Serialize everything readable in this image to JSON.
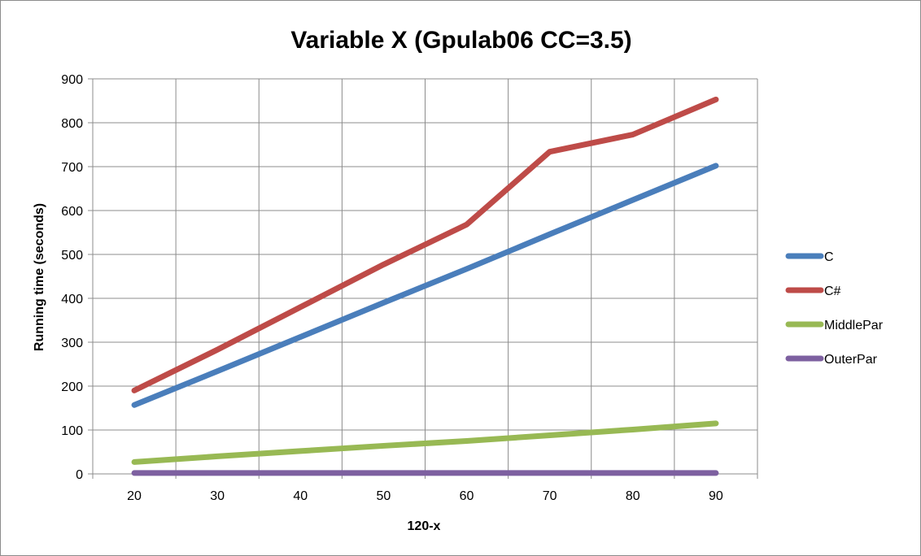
{
  "chart_data": {
    "type": "line",
    "title": "Variable X (Gpulab06 CC=3.5)",
    "xlabel": "120-x",
    "ylabel": "Running time (seconds)",
    "x": [
      20,
      30,
      40,
      50,
      60,
      70,
      80,
      90
    ],
    "ylim": [
      0,
      900
    ],
    "yticks": [
      0,
      100,
      200,
      300,
      400,
      500,
      600,
      700,
      800,
      900
    ],
    "grid": true,
    "legend_position": "right",
    "series": [
      {
        "name": "C",
        "color": "#4a7ebb",
        "values": [
          157,
          234,
          312,
          390,
          467,
          546,
          624,
          702
        ]
      },
      {
        "name": "C#",
        "color": "#be4b48",
        "values": [
          190,
          283,
          380,
          477,
          568,
          734,
          773,
          853
        ]
      },
      {
        "name": "MiddlePar",
        "color": "#98b954",
        "values": [
          27,
          40,
          52,
          64,
          75,
          88,
          101,
          115
        ]
      },
      {
        "name": "OuterPar",
        "color": "#7d60a0",
        "values": [
          2,
          2,
          2,
          2,
          2,
          2,
          2,
          2
        ]
      }
    ]
  }
}
